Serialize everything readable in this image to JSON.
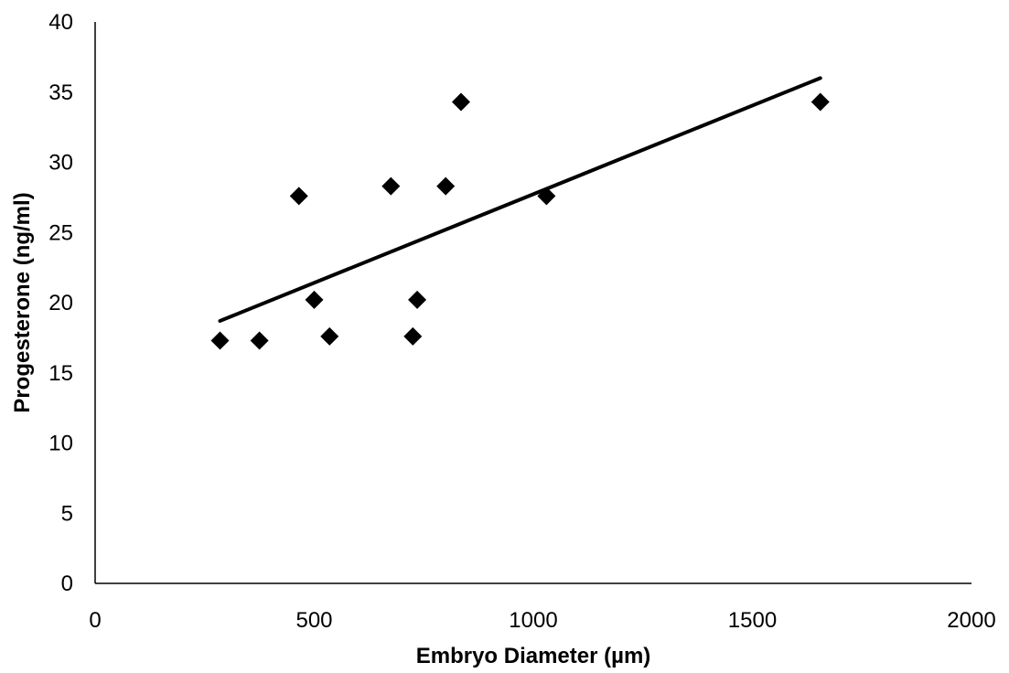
{
  "chart_data": {
    "type": "scatter",
    "title": "",
    "xlabel": "Embryo Diameter (µm)",
    "ylabel": "Progesterone (ng/ml)",
    "xlim": [
      0,
      2000
    ],
    "ylim": [
      0,
      40
    ],
    "xticks": [
      0,
      500,
      1000,
      1500,
      2000
    ],
    "yticks": [
      0,
      5,
      10,
      15,
      20,
      25,
      30,
      35,
      40
    ],
    "grid": false,
    "legend": "none",
    "marker": "diamond",
    "marker_color": "#000000",
    "series": [
      {
        "points": [
          {
            "x": 285,
            "y": 17.3
          },
          {
            "x": 375,
            "y": 17.3
          },
          {
            "x": 465,
            "y": 27.6
          },
          {
            "x": 500,
            "y": 20.2
          },
          {
            "x": 535,
            "y": 17.6
          },
          {
            "x": 675,
            "y": 28.3
          },
          {
            "x": 725,
            "y": 17.6
          },
          {
            "x": 735,
            "y": 20.2
          },
          {
            "x": 800,
            "y": 28.3
          },
          {
            "x": 835,
            "y": 34.3
          },
          {
            "x": 1030,
            "y": 27.6
          },
          {
            "x": 1655,
            "y": 34.3
          }
        ]
      }
    ],
    "trendline": {
      "type": "linear",
      "color": "#000000",
      "x": [
        285,
        1655
      ],
      "y": [
        18.7,
        36.0
      ]
    }
  }
}
